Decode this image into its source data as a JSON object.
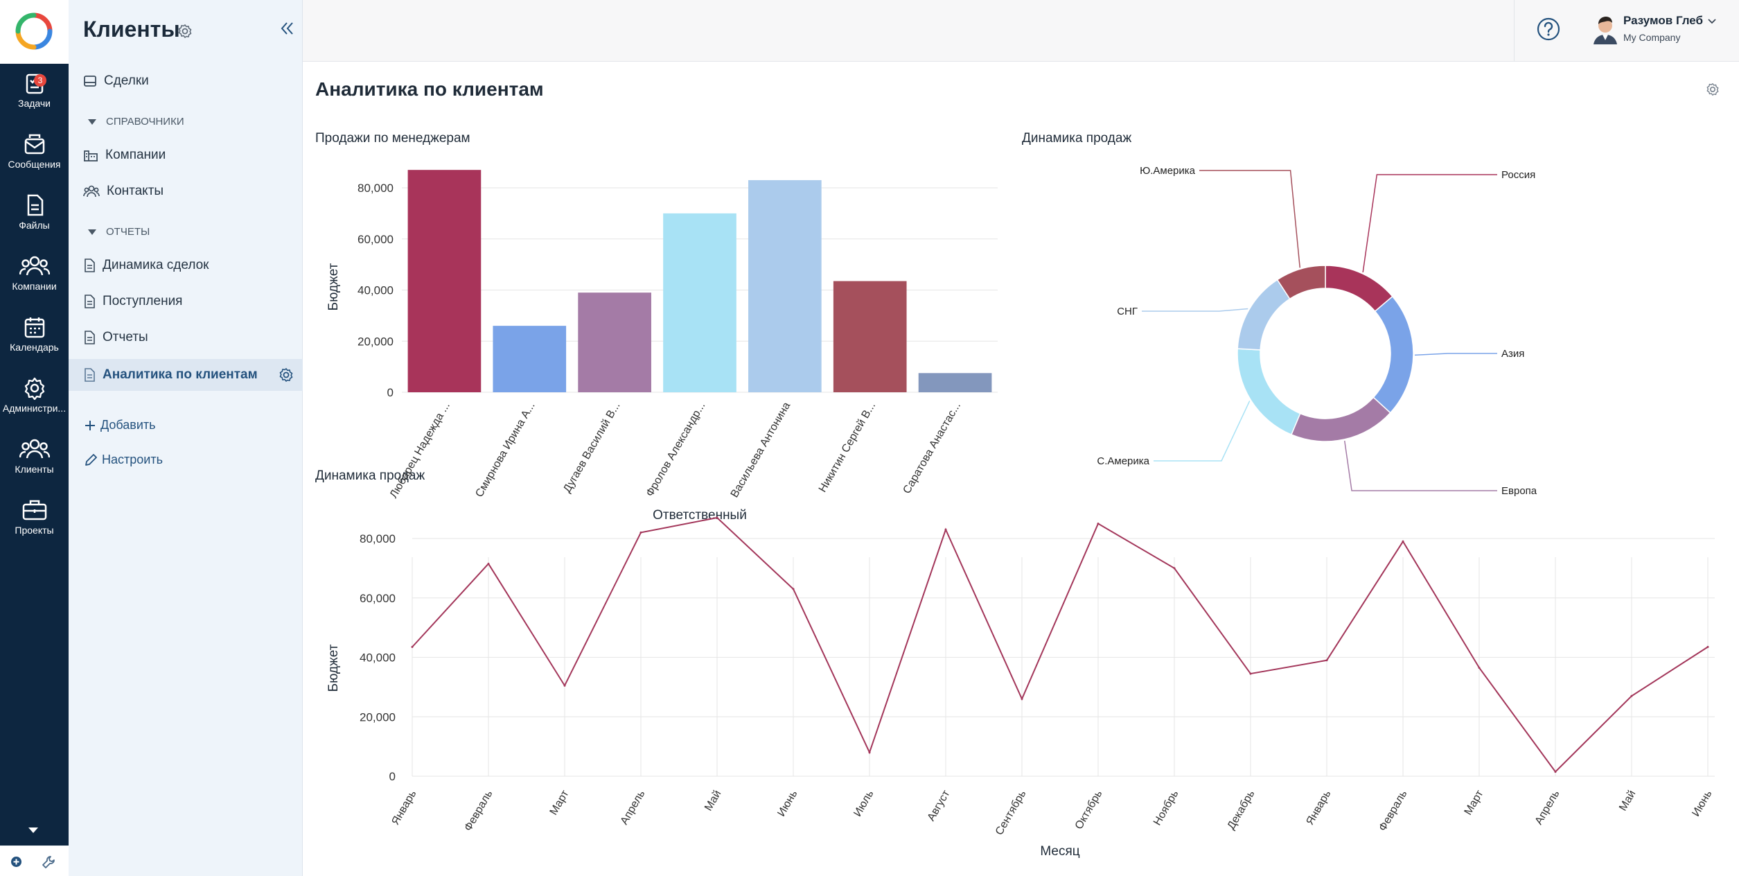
{
  "app": {
    "section_title": "Клиенты",
    "rail": [
      {
        "label": "Задачи",
        "icon": "tasks-icon",
        "badge": "3"
      },
      {
        "label": "Сообщения",
        "icon": "messages-icon"
      },
      {
        "label": "Файлы",
        "icon": "files-icon"
      },
      {
        "label": "Компании",
        "icon": "companies-icon"
      },
      {
        "label": "Календарь",
        "icon": "calendar-icon"
      },
      {
        "label": "Администри...",
        "icon": "admin-gear-icon"
      },
      {
        "label": "Клиенты",
        "icon": "clients-icon"
      },
      {
        "label": "Проекты",
        "icon": "projects-icon"
      }
    ]
  },
  "sidebar": {
    "deals": "Сделки",
    "section_refs": "Справочники",
    "companies": "Компании",
    "contacts": "Контакты",
    "section_reports": "Отчеты",
    "deal_dynamics": "Динамика сделок",
    "receipts": "Поступления",
    "reports": "Отчеты",
    "client_analytics": "Аналитика по клиентам",
    "add": "Добавить",
    "configure": "Настроить"
  },
  "user": {
    "name": "Разумов Глеб",
    "company": "My Company"
  },
  "page": {
    "title": "Аналитика по клиентам"
  },
  "colors": {
    "line": "#a3365a",
    "grid": "#e6e6e6"
  },
  "chart_data": [
    {
      "type": "bar",
      "title": "Продажи по менеджерам",
      "xlabel": "Ответственный",
      "ylabel": "Бюджет",
      "ylim": [
        0,
        80000
      ],
      "yticks": [
        "0",
        "20,000",
        "40,000",
        "60,000",
        "80,000"
      ],
      "categories": [
        "Любарец Надежда ...",
        "Смирнова Ирина А...",
        "Дугаев Василий В...",
        "Фролов Александр...",
        "Васильева Антонина",
        "Никитин Сергей В...",
        "Саратова Анастас..."
      ],
      "values": [
        87000,
        26000,
        39000,
        70000,
        83000,
        43500,
        7500
      ],
      "colors": [
        "#a8345a",
        "#7aa3e8",
        "#a47ba6",
        "#a8e2f5",
        "#abcbec",
        "#a5505c",
        "#8397bd"
      ]
    },
    {
      "type": "pie",
      "title": "Динамика продаж",
      "labels": [
        "Россия",
        "Азия",
        "Европа",
        "С.Америка",
        "СНГ",
        "Ю.Америка"
      ],
      "values": [
        12,
        20,
        17,
        17,
        13,
        8
      ],
      "colors": [
        "#a8345a",
        "#7aa3e8",
        "#a47ba6",
        "#a8e2f5",
        "#abcbec",
        "#a5505c"
      ]
    },
    {
      "type": "line",
      "title": "Динамика продаж",
      "xlabel": "Месяц",
      "ylabel": "Бюджет",
      "ylim": [
        0,
        80000
      ],
      "yticks": [
        "0",
        "20,000",
        "40,000",
        "60,000",
        "80,000"
      ],
      "categories": [
        "Январь",
        "Февраль",
        "Март",
        "Апрель",
        "Май",
        "Июнь",
        "Июль",
        "Август",
        "Сентябрь",
        "Октябрь",
        "Ноябрь",
        "Декабрь",
        "Январь",
        "Февраль",
        "Март",
        "Апрель",
        "Май",
        "Июнь"
      ],
      "values": [
        43500,
        71500,
        30500,
        82000,
        87000,
        63000,
        8000,
        83000,
        26000,
        85000,
        70000,
        34500,
        39000,
        79000,
        36500,
        1500,
        27000,
        43500
      ]
    }
  ]
}
